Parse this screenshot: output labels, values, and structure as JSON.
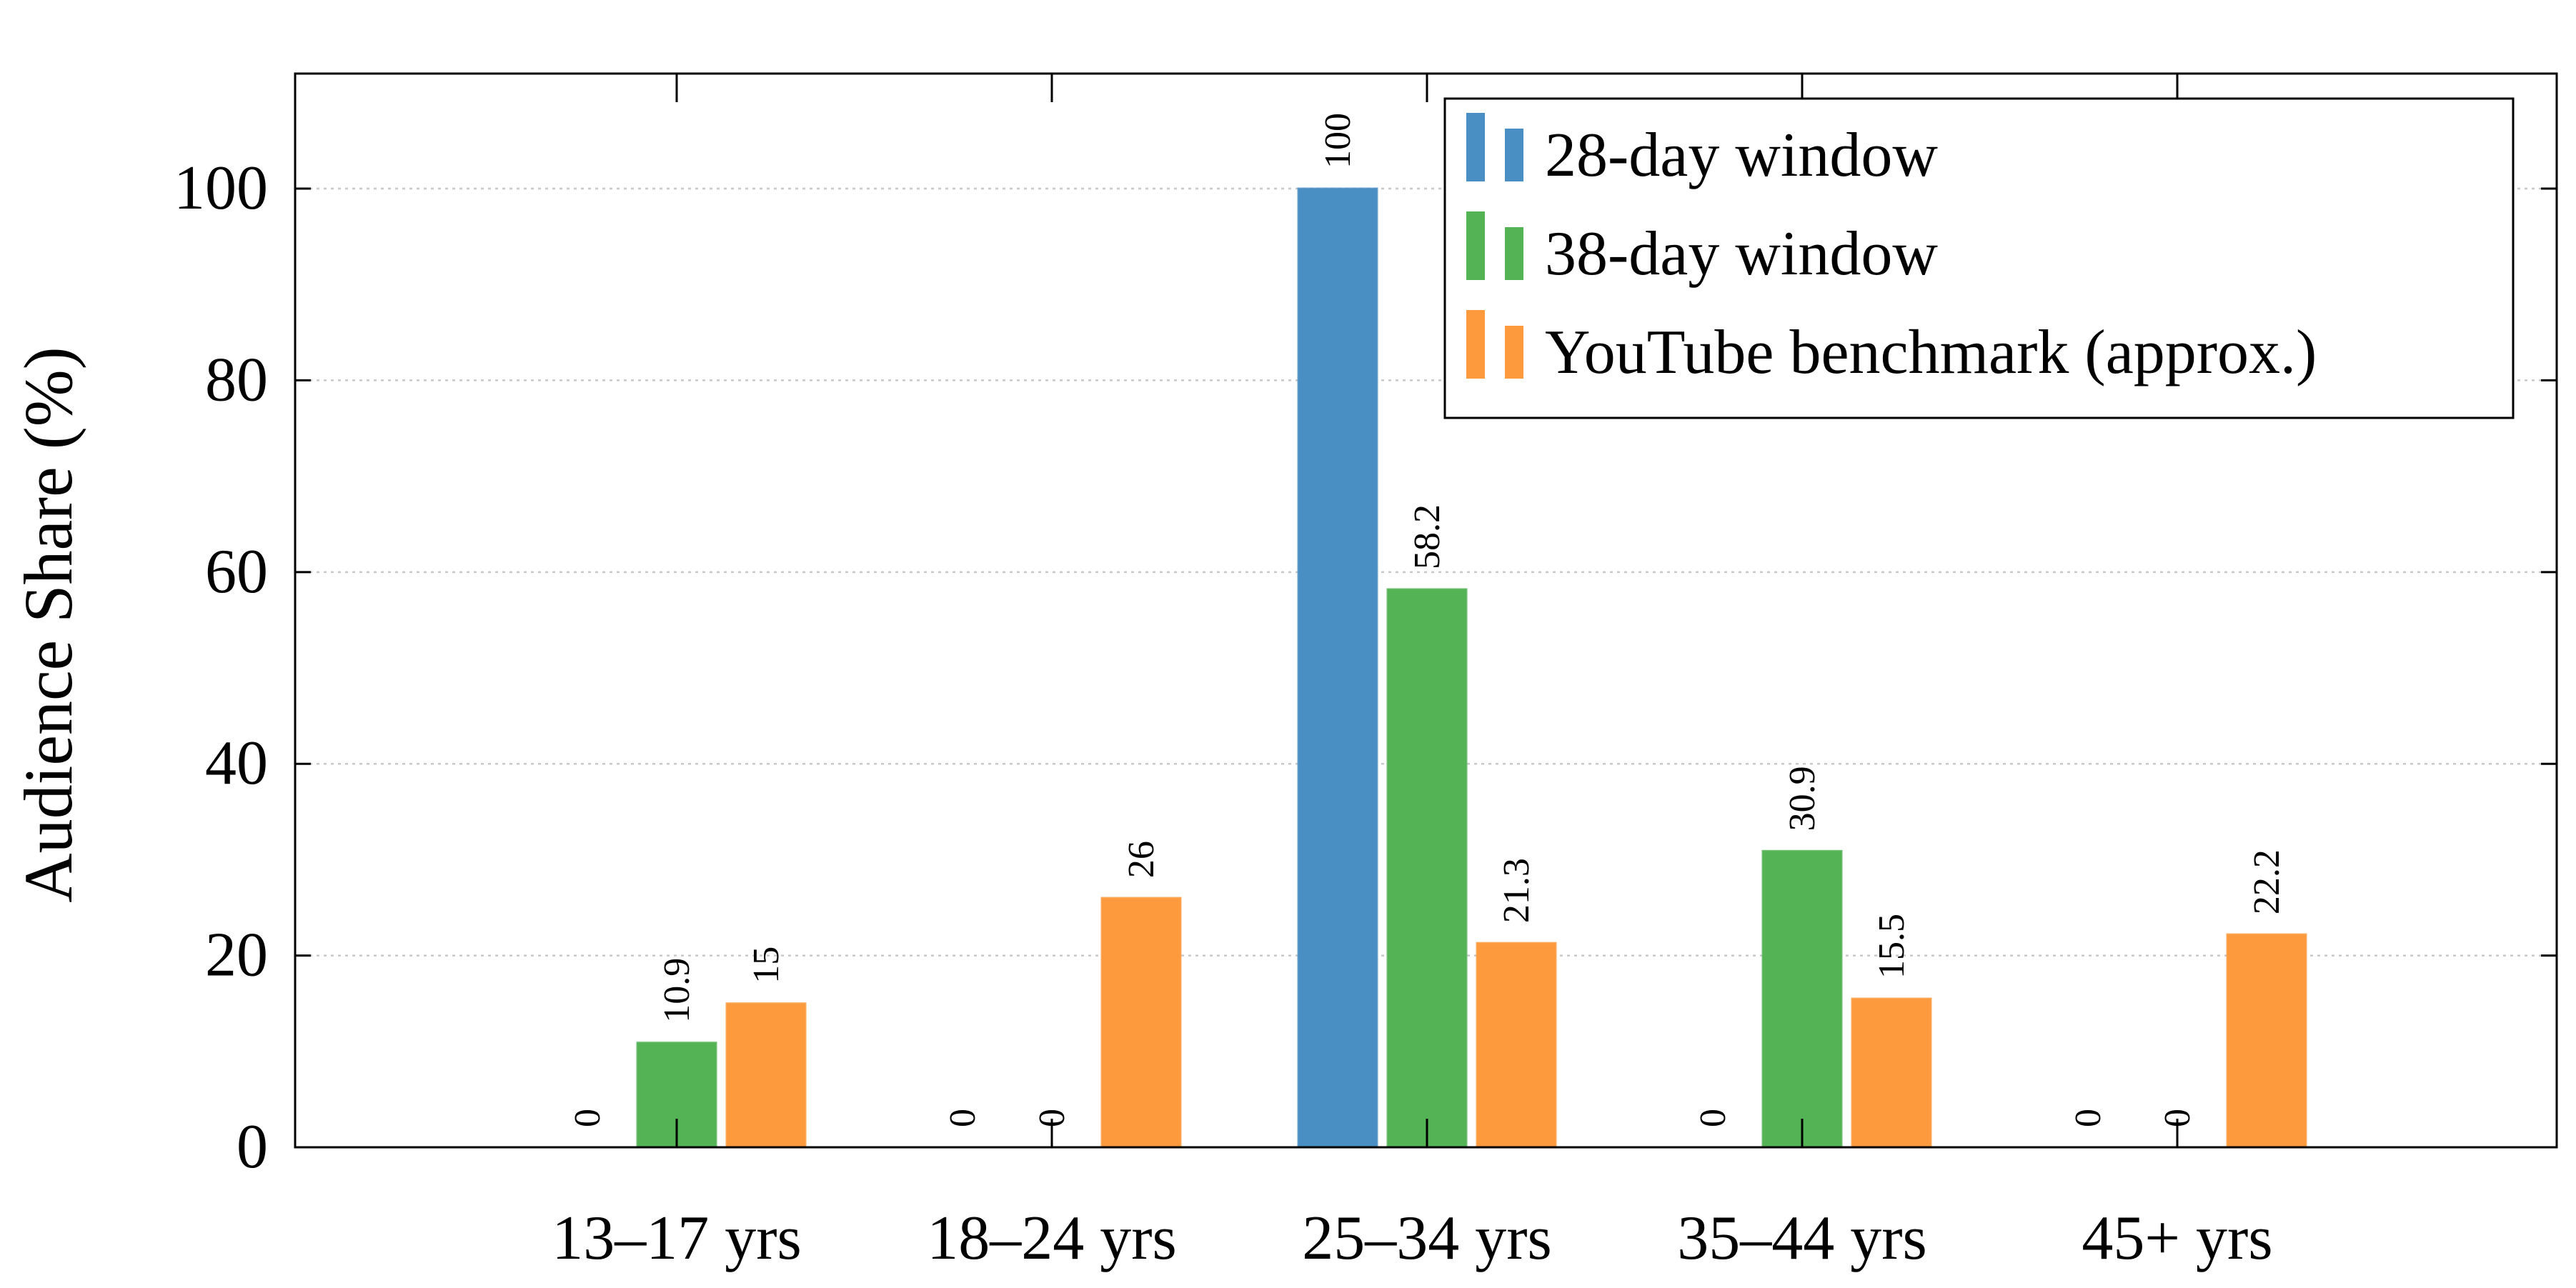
{
  "chart_data": {
    "type": "bar",
    "categories": [
      "13–17 yrs",
      "18–24 yrs",
      "25–34 yrs",
      "35–44 yrs",
      "45+ yrs"
    ],
    "series": [
      {
        "name": "28-day window",
        "color": "#4a8fc4",
        "values": [
          0,
          0,
          100,
          0,
          0
        ],
        "labels": [
          "0",
          "0",
          "100",
          "0",
          "0"
        ]
      },
      {
        "name": "38-day window",
        "color": "#54b355",
        "values": [
          10.9,
          0,
          58.2,
          30.9,
          0
        ],
        "labels": [
          "10.9",
          "0",
          "58.2",
          "30.9",
          "0"
        ]
      },
      {
        "name": "YouTube benchmark (approx.)",
        "color": "#fd9a3e",
        "values": [
          15,
          26,
          21.3,
          15.5,
          22.2
        ],
        "labels": [
          "15",
          "26",
          "21.3",
          "15.5",
          "22.2"
        ]
      }
    ],
    "title": "",
    "xlabel": "",
    "ylabel": "Audience Share (%)",
    "ylim": [
      0,
      112
    ],
    "yticks": [
      0,
      20,
      40,
      60,
      80,
      100
    ],
    "ytick_labels": [
      "0",
      "20",
      "40",
      "60",
      "80",
      "100"
    ],
    "grid": "horizontal-dotted",
    "legend_position": "top-right"
  }
}
